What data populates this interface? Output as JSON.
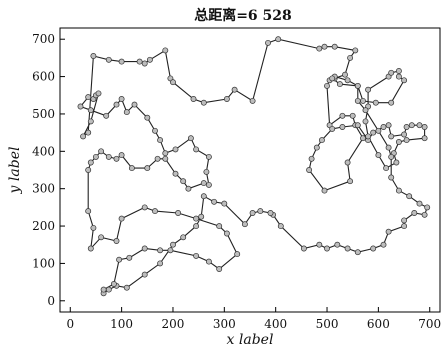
{
  "chart_data": {
    "type": "line",
    "title": "总距离=6 528",
    "xlabel": "x label",
    "ylabel": "y label",
    "xlim": [
      -20,
      720
    ],
    "ylim": [
      -30,
      730
    ],
    "xticks": [
      0,
      100,
      200,
      300,
      400,
      500,
      600,
      700
    ],
    "yticks": [
      0,
      100,
      200,
      300,
      400,
      500,
      600,
      700
    ],
    "grid": false,
    "series": [
      {
        "name": "",
        "closed": true,
        "x": [
          45,
          75,
          100,
          135,
          145,
          155,
          185,
          195,
          200,
          240,
          260,
          305,
          320,
          355,
          385,
          405,
          485,
          495,
          515,
          555,
          545,
          535,
          515,
          505,
          500,
          505,
          530,
          550,
          555,
          570,
          540,
          545,
          495,
          465,
          470,
          480,
          490,
          510,
          530,
          560,
          580,
          590,
          610,
          620,
          625,
          650,
          655,
          665,
          680,
          690,
          690,
          655,
          640,
          630,
          635,
          615,
          600,
          580,
          575,
          580,
          580,
          620,
          625,
          640,
          640,
          650,
          625,
          595,
          570,
          560,
          540,
          515,
          510,
          525,
          560,
          560,
          575,
          600,
          620,
          625,
          625,
          640,
          660,
          680,
          695,
          690,
          670,
          650,
          650,
          620,
          610,
          590,
          560,
          540,
          520,
          500,
          485,
          455,
          410,
          395,
          390,
          370,
          355,
          340,
          300,
          280,
          260,
          255,
          245,
          220,
          200,
          175,
          145,
          110,
          90,
          75,
          65,
          65,
          85,
          95,
          115,
          145,
          175,
          195,
          245,
          270,
          290,
          325,
          305,
          290,
          245,
          210,
          165,
          145,
          100,
          90,
          60,
          40,
          45,
          35,
          35,
          40,
          50,
          60,
          75,
          90,
          100,
          120,
          150,
          170,
          185,
          205,
          220,
          230,
          260,
          270,
          265,
          270,
          245,
          235,
          205,
          185,
          175,
          165,
          150,
          125,
          110,
          100,
          90,
          70,
          40,
          20,
          35,
          45,
          50,
          55,
          40,
          25,
          35
        ],
        "y": [
          655,
          645,
          640,
          640,
          635,
          645,
          670,
          595,
          585,
          540,
          530,
          540,
          565,
          535,
          690,
          700,
          675,
          680,
          680,
          670,
          650,
          605,
          595,
          590,
          575,
          470,
          495,
          495,
          470,
          435,
          370,
          320,
          295,
          350,
          380,
          410,
          430,
          460,
          465,
          470,
          430,
          450,
          465,
          470,
          440,
          445,
          465,
          470,
          470,
          465,
          435,
          430,
          425,
          395,
          370,
          355,
          390,
          440,
          480,
          520,
          565,
          600,
          610,
          615,
          600,
          590,
          530,
          530,
          535,
          575,
          590,
          600,
          595,
          580,
          575,
          535,
          510,
          455,
          410,
          385,
          330,
          295,
          280,
          260,
          250,
          230,
          235,
          215,
          200,
          185,
          150,
          140,
          130,
          140,
          150,
          140,
          150,
          140,
          200,
          230,
          235,
          240,
          235,
          205,
          260,
          265,
          280,
          225,
          200,
          170,
          150,
          100,
          70,
          35,
          40,
          30,
          20,
          30,
          45,
          110,
          115,
          140,
          135,
          135,
          120,
          105,
          85,
          125,
          180,
          200,
          220,
          235,
          240,
          250,
          220,
          160,
          170,
          140,
          195,
          240,
          350,
          370,
          385,
          400,
          385,
          380,
          390,
          355,
          355,
          380,
          380,
          340,
          320,
          300,
          315,
          310,
          345,
          385,
          405,
          435,
          405,
          395,
          430,
          455,
          490,
          525,
          505,
          540,
          525,
          495,
          510,
          520,
          545,
          540,
          550,
          555,
          480,
          440,
          450
        ]
      }
    ]
  }
}
